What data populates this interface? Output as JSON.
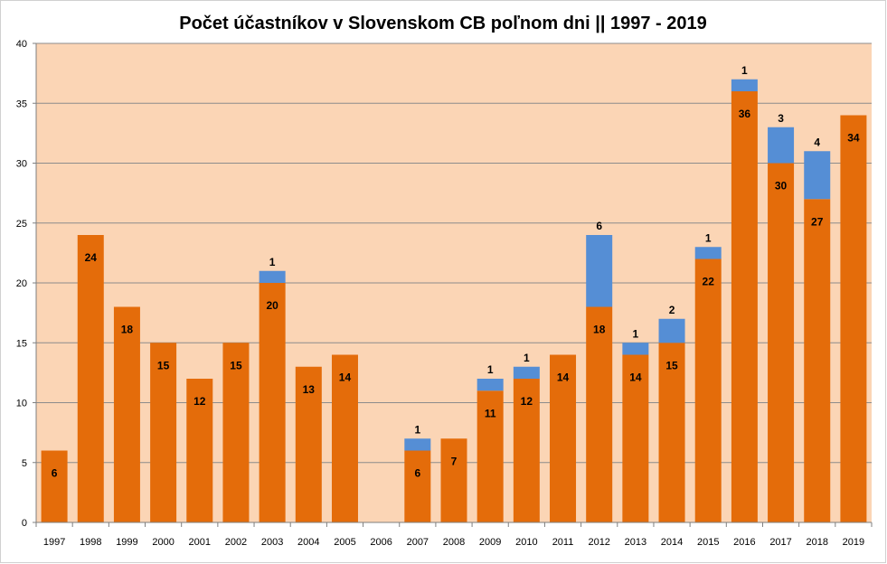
{
  "chart_data": {
    "type": "bar",
    "stacked": true,
    "title": "Počet účastníkov v Slovenskom CB poľnom dni  || 1997 - 2019",
    "xlabel": "",
    "ylabel": "",
    "ylim": [
      0,
      40
    ],
    "yticks": [
      0,
      5,
      10,
      15,
      20,
      25,
      30,
      35,
      40
    ],
    "grid": true,
    "legend": "none",
    "categories": [
      "1997",
      "1998",
      "1999",
      "2000",
      "2001",
      "2002",
      "2003",
      "2004",
      "2005",
      "2006",
      "2007",
      "2008",
      "2009",
      "2010",
      "2011",
      "2012",
      "2013",
      "2014",
      "2015",
      "2016",
      "2017",
      "2018",
      "2019"
    ],
    "series": [
      {
        "color": "#E46C0A",
        "values": [
          6,
          24,
          18,
          15,
          12,
          15,
          20,
          13,
          14,
          0,
          6,
          7,
          11,
          12,
          14,
          18,
          14,
          15,
          22,
          36,
          30,
          27,
          34
        ]
      },
      {
        "color": "#558ED5",
        "values": [
          0,
          0,
          0,
          0,
          0,
          0,
          1,
          0,
          0,
          0,
          1,
          0,
          1,
          1,
          0,
          6,
          1,
          2,
          1,
          1,
          3,
          4,
          0
        ]
      }
    ],
    "plot_background": "#FBD5B5"
  }
}
